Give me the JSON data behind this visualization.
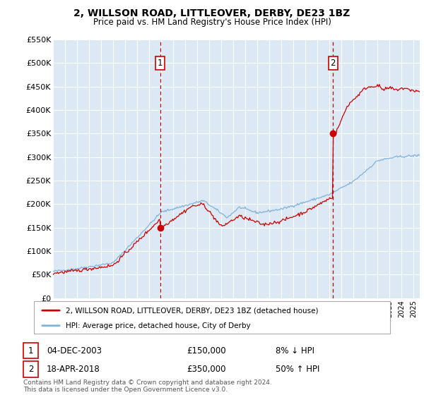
{
  "title": "2, WILLSON ROAD, LITTLEOVER, DERBY, DE23 1BZ",
  "subtitle": "Price paid vs. HM Land Registry's House Price Index (HPI)",
  "background_color": "#ffffff",
  "plot_bg_color": "#dce9f5",
  "grid_color": "#ffffff",
  "ylim": [
    0,
    550000
  ],
  "yticks": [
    0,
    50000,
    100000,
    150000,
    200000,
    250000,
    300000,
    350000,
    400000,
    450000,
    500000,
    550000
  ],
  "ytick_labels": [
    "£0",
    "£50K",
    "£100K",
    "£150K",
    "£200K",
    "£250K",
    "£300K",
    "£350K",
    "£400K",
    "£450K",
    "£500K",
    "£550K"
  ],
  "xmin": 1995.0,
  "xmax": 2025.5,
  "sale1_x": 2003.92,
  "sale1_y": 150000,
  "sale2_x": 2018.29,
  "sale2_y": 350000,
  "sale_color": "#cc0000",
  "vline_color": "#cc0000",
  "hpi_color": "#7fb3d9",
  "legend_entries": [
    "2, WILLSON ROAD, LITTLEOVER, DERBY, DE23 1BZ (detached house)",
    "HPI: Average price, detached house, City of Derby"
  ],
  "annotation1_date": "04-DEC-2003",
  "annotation1_price": "£150,000",
  "annotation1_hpi": "8% ↓ HPI",
  "annotation2_date": "18-APR-2018",
  "annotation2_price": "£350,000",
  "annotation2_hpi": "50% ↑ HPI",
  "footnote1": "Contains HM Land Registry data © Crown copyright and database right 2024.",
  "footnote2": "This data is licensed under the Open Government Licence v3.0."
}
